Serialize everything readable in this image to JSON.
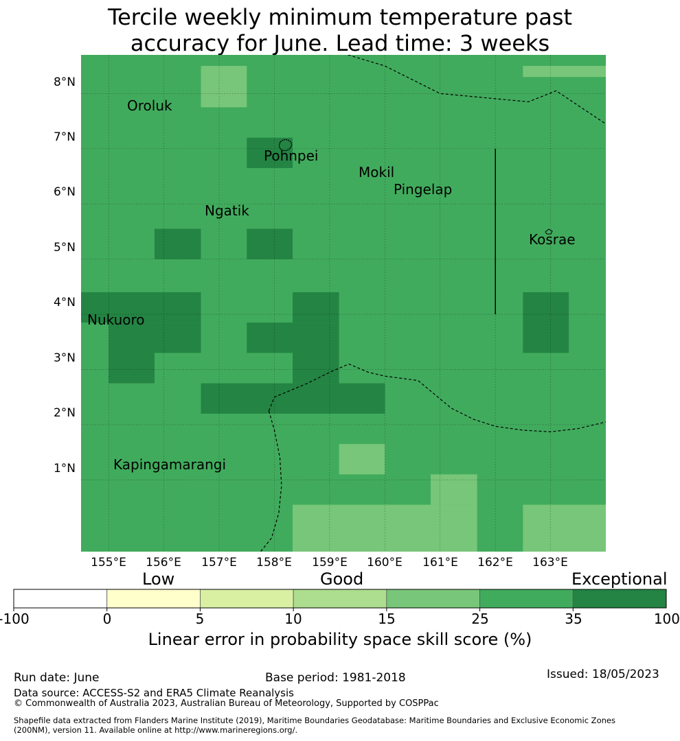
{
  "title": {
    "line1": "Tercile weekly minimum temperature past",
    "line2": "accuracy for June. Lead time: 3 weeks"
  },
  "map": {
    "lat_labels": [
      "8°N",
      "7°N",
      "6°N",
      "5°N",
      "4°N",
      "3°N",
      "2°N",
      "1°N"
    ],
    "lon_labels": [
      "155°E",
      "156°E",
      "157°E",
      "158°E",
      "159°E",
      "160°E",
      "161°E",
      "162°E",
      "163°E"
    ],
    "base_color": "#41ab5d",
    "grid": {
      "lon_range": [
        154.5,
        164.0
      ],
      "lat_range": [
        -0.3,
        8.7
      ],
      "cells": [
        {
          "lon": [
            156.67,
            157.5
          ],
          "lat": [
            7.75,
            8.5
          ],
          "class": "15-25"
        },
        {
          "lon": [
            162.5,
            164.0
          ],
          "lat": [
            8.3,
            8.5
          ],
          "class": "15-25"
        },
        {
          "lon": [
            157.5,
            158.33
          ],
          "lat": [
            6.65,
            7.2
          ],
          "class": "35-100"
        },
        {
          "lon": [
            155.83,
            156.67
          ],
          "lat": [
            5.0,
            5.55
          ],
          "class": "35-100"
        },
        {
          "lon": [
            157.5,
            158.33
          ],
          "lat": [
            5.0,
            5.55
          ],
          "class": "35-100"
        },
        {
          "lon": [
            154.5,
            156.67
          ],
          "lat": [
            3.85,
            4.4
          ],
          "class": "35-100"
        },
        {
          "lon": [
            155.0,
            156.67
          ],
          "lat": [
            3.3,
            3.85
          ],
          "class": "35-100"
        },
        {
          "lon": [
            155.0,
            155.83
          ],
          "lat": [
            2.75,
            3.3
          ],
          "class": "35-100"
        },
        {
          "lon": [
            158.33,
            159.17
          ],
          "lat": [
            3.85,
            4.4
          ],
          "class": "35-100"
        },
        {
          "lon": [
            157.5,
            159.17
          ],
          "lat": [
            3.3,
            3.85
          ],
          "class": "35-100"
        },
        {
          "lon": [
            158.33,
            159.17
          ],
          "lat": [
            2.75,
            3.3
          ],
          "class": "35-100"
        },
        {
          "lon": [
            156.67,
            160.0
          ],
          "lat": [
            2.2,
            2.75
          ],
          "class": "35-100"
        },
        {
          "lon": [
            162.5,
            163.33
          ],
          "lat": [
            3.3,
            4.4
          ],
          "class": "35-100"
        },
        {
          "lon": [
            159.17,
            160.0
          ],
          "lat": [
            1.1,
            1.65
          ],
          "class": "15-25"
        },
        {
          "lon": [
            160.83,
            161.67
          ],
          "lat": [
            0.55,
            1.1
          ],
          "class": "15-25"
        },
        {
          "lon": [
            158.33,
            161.67
          ],
          "lat": [
            -0.3,
            0.55
          ],
          "class": "15-25"
        },
        {
          "lon": [
            162.5,
            164.0
          ],
          "lat": [
            -0.3,
            0.55
          ],
          "class": "15-25"
        }
      ]
    },
    "boundaries": {
      "north_eez": [
        [
          159.0,
          8.8
        ],
        [
          160.0,
          8.5
        ],
        [
          161.0,
          8.0
        ],
        [
          162.6,
          7.85
        ],
        [
          163.1,
          8.05
        ],
        [
          164.0,
          7.45
        ]
      ],
      "south_fsm_png": [
        [
          157.9,
          2.25
        ],
        [
          158.0,
          2.5
        ],
        [
          158.6,
          2.75
        ],
        [
          159.0,
          2.95
        ],
        [
          159.35,
          3.1
        ],
        [
          159.7,
          2.95
        ],
        [
          160.0,
          2.88
        ],
        [
          160.6,
          2.8
        ],
        [
          160.9,
          2.55
        ],
        [
          161.2,
          2.3
        ],
        [
          161.6,
          2.1
        ],
        [
          162.0,
          1.97
        ],
        [
          162.5,
          1.9
        ],
        [
          163.0,
          1.87
        ],
        [
          163.5,
          1.93
        ],
        [
          164.0,
          2.05
        ]
      ],
      "south_fsm_png_west": [
        [
          157.9,
          2.25
        ],
        [
          158.0,
          1.9
        ],
        [
          158.1,
          1.4
        ],
        [
          158.13,
          0.9
        ],
        [
          158.08,
          0.4
        ],
        [
          157.95,
          -0.05
        ],
        [
          157.75,
          -0.3
        ]
      ],
      "kosrae_line": [
        [
          162.0,
          7.0
        ],
        [
          162.0,
          4.0
        ]
      ]
    },
    "places": [
      {
        "name": "Oroluk",
        "lon": 155.33,
        "lat": 7.5
      },
      {
        "name": "Pohnpei",
        "lon": 157.8,
        "lat": 6.75
      },
      {
        "name": "Mokil",
        "lon": 159.45,
        "lat": 6.25
      },
      {
        "name": "Pingelap",
        "lon": 160.15,
        "lat": 5.95
      },
      {
        "name": "Ngatik",
        "lon": 156.75,
        "lat": 5.55
      },
      {
        "name": "Kosrae",
        "lon": 162.6,
        "lat": 5.05
      },
      {
        "name": "Nukuoro",
        "lon": 154.6,
        "lat": 3.65
      },
      {
        "name": "Kapingamarangi",
        "lon": 155.1,
        "lat": 0.95
      }
    ]
  },
  "colorbar": {
    "categories": [
      "Low",
      "Good",
      "Exceptional"
    ],
    "ticks": [
      "-100",
      "0",
      "5",
      "10",
      "15",
      "25",
      "35",
      "100"
    ],
    "colors": [
      "#ffffff",
      "#ffffcc",
      "#d9f0a3",
      "#addd8e",
      "#78c679",
      "#41ab5d",
      "#238443"
    ],
    "title": "Linear error in probability space skill score (%)"
  },
  "footer": {
    "run_date": "Run date: June",
    "base_period": "Base period: 1981-2018",
    "issued": "Issued: 18/05/2023",
    "data_source": "Data source: ACCESS-S2 and ERA5 Climate Reanalysis",
    "copyright": "© Commonwealth of Australia 2023, Australian Bureau of Meteorology, Supported by COSPPac",
    "shapefile_line1": "Shapefile data extracted from Flanders Marine Institute (2019), Maritime Boundaries Geodatabase: Maritime Boundaries and Exclusive Economic Zones",
    "shapefile_line2": "(200NM), version 11. Available online at http://www.marineregions.org/."
  }
}
